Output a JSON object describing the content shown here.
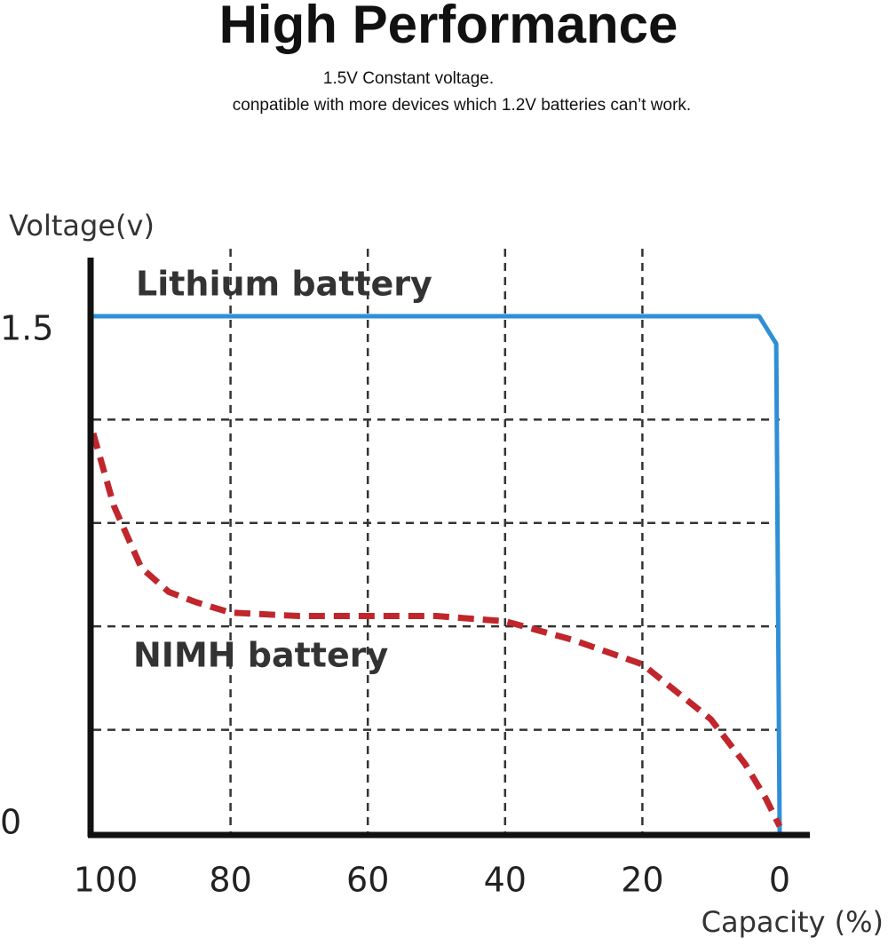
{
  "chart_data": {
    "type": "line",
    "title": "High Performance",
    "subtitle": [
      "1.5V Constant voltage.",
      "conpatible with more devices which 1.2V batteries can’t work."
    ],
    "y_label": "Voltage(v)",
    "x_label": "Capacity (%)",
    "xlim": [
      100,
      0
    ],
    "xticks": [
      100,
      80,
      60,
      40,
      20,
      0
    ],
    "ylim": [
      0,
      1.67
    ],
    "yticks": [
      0,
      1.5
    ],
    "ygrid": [
      0.3,
      0.6,
      0.9,
      1.2
    ],
    "xgrid": [
      80,
      60,
      40,
      20
    ],
    "series": [
      {
        "name": "Lithium battery",
        "color": "#2e8fd6",
        "dashed": false,
        "x": [
          100,
          3,
          0.5,
          0
        ],
        "values": [
          1.5,
          1.5,
          1.42,
          0
        ]
      },
      {
        "name": "NIMH battery",
        "color": "#c0262c",
        "dashed": true,
        "x": [
          100,
          97,
          93,
          89,
          85,
          80,
          70,
          60,
          50,
          40,
          30,
          20,
          10,
          5,
          2,
          0
        ],
        "values": [
          1.16,
          0.95,
          0.77,
          0.7,
          0.67,
          0.64,
          0.63,
          0.63,
          0.63,
          0.615,
          0.56,
          0.49,
          0.33,
          0.2,
          0.1,
          0.02
        ]
      }
    ]
  }
}
